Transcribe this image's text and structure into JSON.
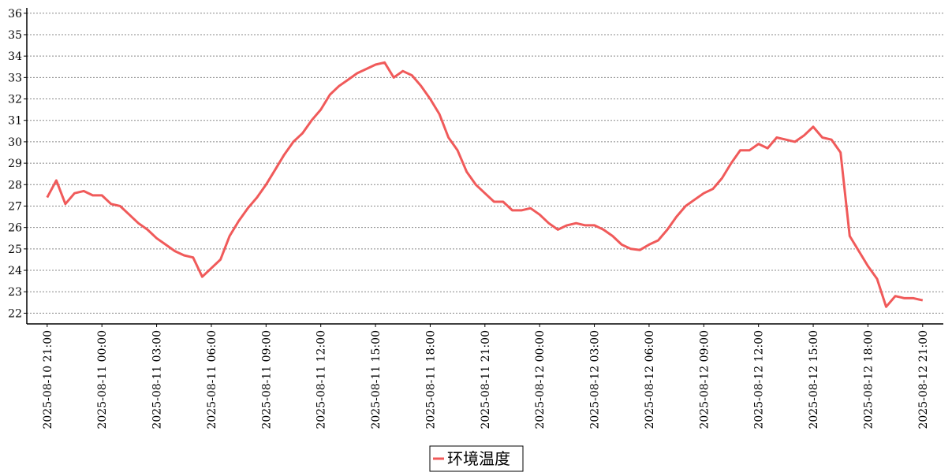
{
  "chart_data": {
    "type": "line",
    "x": [
      "2025-08-10 21:00",
      "2025-08-10 21:30",
      "2025-08-10 22:00",
      "2025-08-10 22:30",
      "2025-08-10 23:00",
      "2025-08-10 23:30",
      "2025-08-11 00:00",
      "2025-08-11 00:30",
      "2025-08-11 01:00",
      "2025-08-11 01:30",
      "2025-08-11 02:00",
      "2025-08-11 02:30",
      "2025-08-11 03:00",
      "2025-08-11 03:30",
      "2025-08-11 04:00",
      "2025-08-11 04:30",
      "2025-08-11 05:00",
      "2025-08-11 05:30",
      "2025-08-11 06:00",
      "2025-08-11 06:30",
      "2025-08-11 07:00",
      "2025-08-11 07:30",
      "2025-08-11 08:00",
      "2025-08-11 08:30",
      "2025-08-11 09:00",
      "2025-08-11 09:30",
      "2025-08-11 10:00",
      "2025-08-11 10:30",
      "2025-08-11 11:00",
      "2025-08-11 11:30",
      "2025-08-11 12:00",
      "2025-08-11 12:30",
      "2025-08-11 13:00",
      "2025-08-11 13:30",
      "2025-08-11 14:00",
      "2025-08-11 14:30",
      "2025-08-11 15:00",
      "2025-08-11 15:30",
      "2025-08-11 16:00",
      "2025-08-11 16:30",
      "2025-08-11 17:00",
      "2025-08-11 17:30",
      "2025-08-11 18:00",
      "2025-08-11 18:30",
      "2025-08-11 19:00",
      "2025-08-11 19:30",
      "2025-08-11 20:00",
      "2025-08-11 20:30",
      "2025-08-11 21:00",
      "2025-08-11 21:30",
      "2025-08-11 22:00",
      "2025-08-11 22:30",
      "2025-08-11 23:00",
      "2025-08-11 23:30",
      "2025-08-12 00:00",
      "2025-08-12 00:30",
      "2025-08-12 01:00",
      "2025-08-12 01:30",
      "2025-08-12 02:00",
      "2025-08-12 02:30",
      "2025-08-12 03:00",
      "2025-08-12 03:30",
      "2025-08-12 04:00",
      "2025-08-12 04:30",
      "2025-08-12 05:00",
      "2025-08-12 05:30",
      "2025-08-12 06:00",
      "2025-08-12 06:30",
      "2025-08-12 07:00",
      "2025-08-12 07:30",
      "2025-08-12 08:00",
      "2025-08-12 08:30",
      "2025-08-12 09:00",
      "2025-08-12 09:30",
      "2025-08-12 10:00",
      "2025-08-12 10:30",
      "2025-08-12 11:00",
      "2025-08-12 11:30",
      "2025-08-12 12:00",
      "2025-08-12 12:30",
      "2025-08-12 13:00",
      "2025-08-12 13:30",
      "2025-08-12 14:00",
      "2025-08-12 14:30",
      "2025-08-12 15:00",
      "2025-08-12 15:30",
      "2025-08-12 16:00",
      "2025-08-12 16:30",
      "2025-08-12 17:00",
      "2025-08-12 17:30",
      "2025-08-12 18:00",
      "2025-08-12 18:30",
      "2025-08-12 19:00",
      "2025-08-12 19:30",
      "2025-08-12 20:00",
      "2025-08-12 20:30",
      "2025-08-12 21:00"
    ],
    "series": [
      {
        "name": "环境温度",
        "color": "#f05a5a",
        "values": [
          27.4,
          28.2,
          27.1,
          27.6,
          27.7,
          27.5,
          27.5,
          27.1,
          27.0,
          26.6,
          26.2,
          25.9,
          25.5,
          25.2,
          24.9,
          24.7,
          24.6,
          23.7,
          24.1,
          24.5,
          25.6,
          26.3,
          26.9,
          27.4,
          28.0,
          28.7,
          29.4,
          30.0,
          30.4,
          31.0,
          31.5,
          32.2,
          32.6,
          32.9,
          33.2,
          33.4,
          33.6,
          33.7,
          33.0,
          33.3,
          33.1,
          32.6,
          32.0,
          31.3,
          30.2,
          29.6,
          28.6,
          28.0,
          27.6,
          27.2,
          27.2,
          26.8,
          26.8,
          26.9,
          26.6,
          26.2,
          25.9,
          26.1,
          26.2,
          26.1,
          26.1,
          25.9,
          25.6,
          25.2,
          25.0,
          24.95,
          25.2,
          25.4,
          25.9,
          26.5,
          27.0,
          27.3,
          27.6,
          27.8,
          28.3,
          29.0,
          29.6,
          29.6,
          29.9,
          29.7,
          30.2,
          30.1,
          30.0,
          30.3,
          30.7,
          30.2,
          30.1,
          29.5,
          25.6,
          24.9,
          24.2,
          23.6,
          22.3,
          22.8,
          22.7,
          22.7,
          22.6
        ]
      }
    ],
    "xlim": [
      "2025-08-10 19:53",
      "2025-08-12 22:08"
    ],
    "xticks": [
      "2025-08-10 21:00",
      "2025-08-11 00:00",
      "2025-08-11 03:00",
      "2025-08-11 06:00",
      "2025-08-11 09:00",
      "2025-08-11 12:00",
      "2025-08-11 15:00",
      "2025-08-11 18:00",
      "2025-08-11 21:00",
      "2025-08-12 00:00",
      "2025-08-12 03:00",
      "2025-08-12 06:00",
      "2025-08-12 09:00",
      "2025-08-12 12:00",
      "2025-08-12 15:00",
      "2025-08-12 18:00",
      "2025-08-12 21:00"
    ],
    "ylim": [
      21.5,
      36.25
    ],
    "yticks": [
      22,
      23,
      24,
      25,
      26,
      27,
      28,
      29,
      30,
      31,
      32,
      33,
      34,
      35,
      36
    ],
    "grid": true
  }
}
